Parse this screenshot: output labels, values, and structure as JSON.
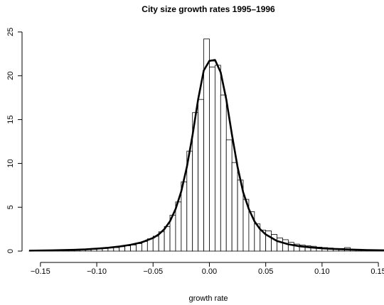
{
  "chart_data": {
    "type": "bar",
    "title": "City size growth rates 1995–1996",
    "xlabel": "growth rate",
    "ylabel": "",
    "xlim": [
      -0.16,
      0.155
    ],
    "ylim": [
      0,
      25
    ],
    "x_ticks": [
      {
        "value": -0.15,
        "label": "−0.15"
      },
      {
        "value": -0.1,
        "label": "−0.10"
      },
      {
        "value": -0.05,
        "label": "−0.05"
      },
      {
        "value": 0.0,
        "label": "0.00"
      },
      {
        "value": 0.05,
        "label": "0.05"
      },
      {
        "value": 0.1,
        "label": "0.10"
      },
      {
        "value": 0.15,
        "label": "0.15"
      }
    ],
    "y_ticks": [
      {
        "value": 0,
        "label": "0"
      },
      {
        "value": 5,
        "label": "5"
      },
      {
        "value": 10,
        "label": "10"
      },
      {
        "value": 15,
        "label": "15"
      },
      {
        "value": 20,
        "label": "20"
      },
      {
        "value": 25,
        "label": "25"
      }
    ],
    "histogram": {
      "bin_width": 0.005,
      "bin_starts": [
        -0.16,
        -0.155,
        -0.15,
        -0.145,
        -0.14,
        -0.135,
        -0.13,
        -0.125,
        -0.12,
        -0.115,
        -0.11,
        -0.105,
        -0.1,
        -0.095,
        -0.09,
        -0.085,
        -0.08,
        -0.075,
        -0.07,
        -0.065,
        -0.06,
        -0.055,
        -0.05,
        -0.045,
        -0.04,
        -0.035,
        -0.03,
        -0.025,
        -0.02,
        -0.015,
        -0.01,
        -0.005,
        0,
        0.005,
        0.01,
        0.015,
        0.02,
        0.025,
        0.03,
        0.035,
        0.04,
        0.045,
        0.05,
        0.055,
        0.06,
        0.065,
        0.07,
        0.075,
        0.08,
        0.085,
        0.09,
        0.095,
        0.1,
        0.105,
        0.11,
        0.115,
        0.12,
        0.125,
        0.13,
        0.135,
        0.14,
        0.145,
        0.15
      ],
      "values": [
        0.02,
        0.02,
        0.03,
        0.03,
        0.04,
        0.05,
        0.06,
        0.08,
        0.1,
        0.12,
        0.15,
        0.2,
        0.25,
        0.3,
        0.35,
        0.4,
        0.5,
        0.6,
        0.7,
        0.85,
        1.1,
        1.4,
        1.7,
        2.2,
        2.8,
        4.1,
        5.6,
        7.9,
        11.4,
        15.8,
        17.3,
        24.2,
        21.0,
        21.2,
        17.8,
        12.7,
        10.1,
        8.1,
        5.9,
        4.5,
        3.1,
        2.4,
        2.3,
        1.9,
        1.5,
        1.3,
        1.0,
        0.8,
        0.7,
        0.6,
        0.55,
        0.45,
        0.4,
        0.35,
        0.3,
        0.3,
        0.4,
        0.2,
        0.15,
        0.12,
        0.1,
        0.08,
        0.06
      ]
    },
    "fit_curve": {
      "type": "line",
      "x": [
        -0.16,
        -0.15,
        -0.14,
        -0.13,
        -0.12,
        -0.11,
        -0.1,
        -0.09,
        -0.08,
        -0.07,
        -0.06,
        -0.05,
        -0.045,
        -0.04,
        -0.035,
        -0.03,
        -0.025,
        -0.02,
        -0.015,
        -0.01,
        -0.005,
        0.0,
        0.005,
        0.01,
        0.015,
        0.02,
        0.025,
        0.03,
        0.035,
        0.04,
        0.045,
        0.05,
        0.06,
        0.07,
        0.08,
        0.09,
        0.1,
        0.11,
        0.12,
        0.13,
        0.14,
        0.155
      ],
      "y": [
        0.05,
        0.07,
        0.09,
        0.12,
        0.15,
        0.2,
        0.28,
        0.38,
        0.52,
        0.72,
        1.0,
        1.5,
        1.9,
        2.5,
        3.4,
        4.8,
        6.8,
        9.6,
        13.2,
        17.3,
        20.6,
        21.7,
        21.8,
        20.4,
        17.3,
        13.3,
        9.6,
        6.7,
        4.8,
        3.4,
        2.5,
        1.9,
        1.15,
        0.78,
        0.55,
        0.42,
        0.32,
        0.25,
        0.2,
        0.16,
        0.12,
        0.09
      ]
    }
  }
}
